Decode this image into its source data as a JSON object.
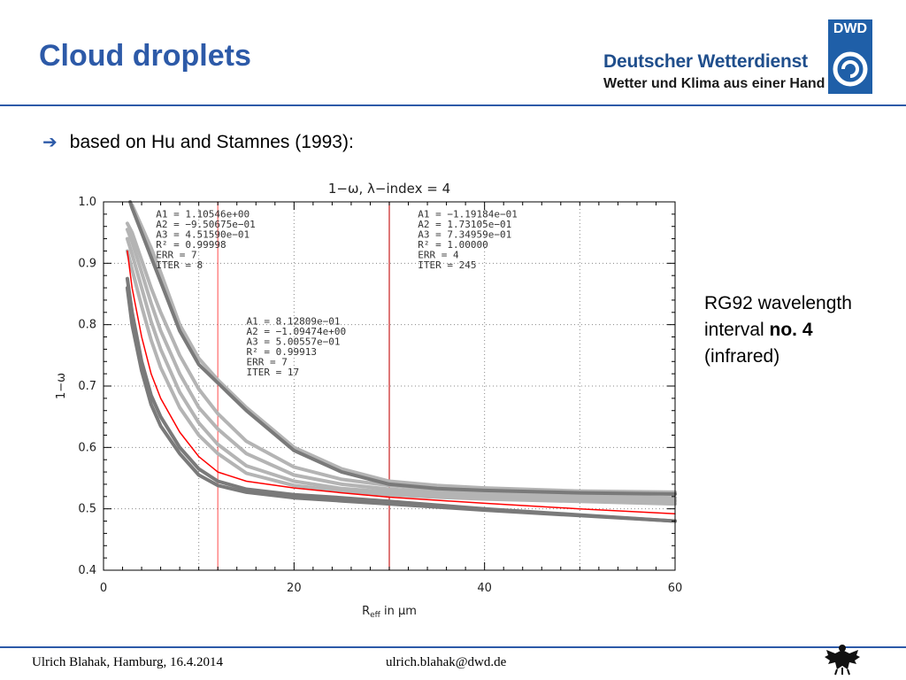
{
  "slide": {
    "title": "Cloud droplets",
    "bullet": "based on Hu and Stamnes (1993):",
    "note": {
      "line1": "RG92 wavelength",
      "line2_prefix": "interval ",
      "line2_bold": "no. 4",
      "line3": "(infrared)"
    }
  },
  "logo": {
    "abbr": "DWD",
    "line1": "Deutscher Wetterdienst",
    "line2": "Wetter und Klima aus einer Hand"
  },
  "footer": {
    "author": "Ulrich Blahak, Hamburg, 16.4.2014",
    "email": "ulrich.blahak@dwd.de"
  },
  "icons": {
    "bullet": "right-arrow-icon",
    "logo": "dwd-swirl-icon",
    "eagle": "federal-eagle-icon"
  },
  "colors": {
    "title": "#2d5aa8",
    "fit_curve": "#ff0000",
    "data_curves_dark": "#7a7a7a",
    "data_curves_light": "#b4b4b4",
    "divider_light": "#ff6a6a",
    "divider_dark": "#c81e1e"
  },
  "chart_data": {
    "type": "line",
    "title": "1−ω,  λ−index = 4",
    "xlabel_main": "R",
    "xlabel_sub": "eff",
    "xlabel_tail": " in μm",
    "ylabel": "1−ω",
    "xlim": [
      0,
      60
    ],
    "ylim": [
      0.4,
      1.0
    ],
    "xticks": [
      0,
      20,
      40,
      60
    ],
    "xtick_labels": [
      "0",
      "20",
      "40",
      "60"
    ],
    "yticks": [
      0.4,
      0.5,
      0.6,
      0.7,
      0.8,
      0.9,
      1.0
    ],
    "ytick_labels": [
      "0.4",
      "0.5",
      "0.6",
      "0.7",
      "0.8",
      "0.9",
      "1.0"
    ],
    "grid": true,
    "interval_boundaries": [
      12,
      30
    ],
    "fit_boxes": [
      {
        "lines": [
          "A1 = 1.10546e+00",
          "A2 = −9.50675e−01",
          "A3 = 4.51590e−01",
          "R² = 0.99998",
          "ERR = 7",
          "ITER = 8"
        ],
        "anchor": [
          5.5,
          0.975
        ]
      },
      {
        "lines": [
          "A1 = 8.12809e−01",
          "A2 = −1.09474e+00",
          "A3 = 5.00557e−01",
          "R² = 0.99913",
          "ERR = 7",
          "ITER = 17"
        ],
        "anchor": [
          15,
          0.8
        ]
      },
      {
        "lines": [
          "A1 = −1.19184e−01",
          "A2 = 1.73105e−01",
          "A3 = 7.34959e−01",
          "R² = 1.00000",
          "ERR = 4",
          "ITER = 245"
        ],
        "anchor": [
          33,
          0.975
        ]
      }
    ],
    "series": [
      {
        "style": "fit",
        "x": [
          2.5,
          3,
          4,
          5,
          6,
          8,
          10,
          12,
          15,
          20,
          25,
          30,
          35,
          40,
          50,
          60
        ],
        "y": [
          0.92,
          0.86,
          0.78,
          0.72,
          0.68,
          0.625,
          0.585,
          0.56,
          0.545,
          0.534,
          0.526,
          0.519,
          0.514,
          0.509,
          0.5,
          0.492
        ]
      },
      {
        "style": "dark",
        "x": [
          2.5,
          3,
          4,
          5,
          6,
          8,
          10,
          12,
          15,
          20,
          25,
          30,
          35,
          40,
          50,
          60
        ],
        "y": [
          0.875,
          0.82,
          0.74,
          0.685,
          0.65,
          0.6,
          0.565,
          0.545,
          0.532,
          0.523,
          0.518,
          0.512,
          0.506,
          0.5,
          0.49,
          0.48
        ]
      },
      {
        "style": "dark",
        "x": [
          2.5,
          3,
          4,
          5,
          6,
          8,
          10,
          12,
          15,
          20,
          25,
          30,
          35,
          40,
          50,
          60
        ],
        "y": [
          0.86,
          0.8,
          0.725,
          0.67,
          0.635,
          0.59,
          0.555,
          0.538,
          0.527,
          0.518,
          0.513,
          0.508,
          0.503,
          0.498,
          0.489,
          0.48
        ]
      },
      {
        "style": "light",
        "x": [
          2.5,
          3,
          4,
          5,
          6,
          8,
          10,
          12,
          15,
          20,
          25,
          30,
          35,
          40,
          50,
          60
        ],
        "y": [
          0.965,
          0.95,
          0.905,
          0.86,
          0.82,
          0.75,
          0.695,
          0.655,
          0.61,
          0.568,
          0.548,
          0.538,
          0.532,
          0.528,
          0.522,
          0.518
        ]
      },
      {
        "style": "light",
        "x": [
          2.5,
          3,
          4,
          5,
          6,
          8,
          10,
          12,
          15,
          20,
          25,
          30,
          35,
          40,
          50,
          60
        ],
        "y": [
          0.955,
          0.935,
          0.885,
          0.835,
          0.79,
          0.72,
          0.665,
          0.63,
          0.59,
          0.555,
          0.54,
          0.532,
          0.527,
          0.523,
          0.518,
          0.514
        ]
      },
      {
        "style": "light",
        "x": [
          2.5,
          3,
          4,
          5,
          6,
          8,
          10,
          12,
          15,
          20,
          25,
          30,
          35,
          40,
          50,
          60
        ],
        "y": [
          0.94,
          0.915,
          0.86,
          0.805,
          0.76,
          0.69,
          0.64,
          0.605,
          0.57,
          0.545,
          0.533,
          0.527,
          0.523,
          0.52,
          0.516,
          0.512
        ]
      },
      {
        "style": "light",
        "x": [
          2.5,
          3,
          4,
          5,
          6,
          8,
          10,
          12,
          15,
          20,
          25,
          30,
          35,
          40,
          50,
          60
        ],
        "y": [
          0.92,
          0.89,
          0.83,
          0.775,
          0.73,
          0.665,
          0.62,
          0.59,
          0.558,
          0.538,
          0.529,
          0.523,
          0.519,
          0.516,
          0.512,
          0.508
        ]
      },
      {
        "style": "dark",
        "x": [
          2.8,
          3,
          4,
          5,
          6,
          8,
          10,
          12,
          15,
          20,
          25,
          30,
          35,
          40,
          50,
          60
        ],
        "y": [
          1.0,
          0.99,
          0.95,
          0.91,
          0.87,
          0.79,
          0.735,
          0.705,
          0.66,
          0.595,
          0.56,
          0.54,
          0.533,
          0.53,
          0.526,
          0.524
        ]
      },
      {
        "style": "light",
        "x": [
          3,
          4,
          5,
          6,
          8,
          10,
          12,
          15,
          20,
          25,
          30,
          35,
          40,
          50,
          60
        ],
        "y": [
          0.995,
          0.96,
          0.925,
          0.885,
          0.8,
          0.745,
          0.71,
          0.665,
          0.6,
          0.565,
          0.545,
          0.538,
          0.534,
          0.529,
          0.527
        ]
      }
    ]
  }
}
